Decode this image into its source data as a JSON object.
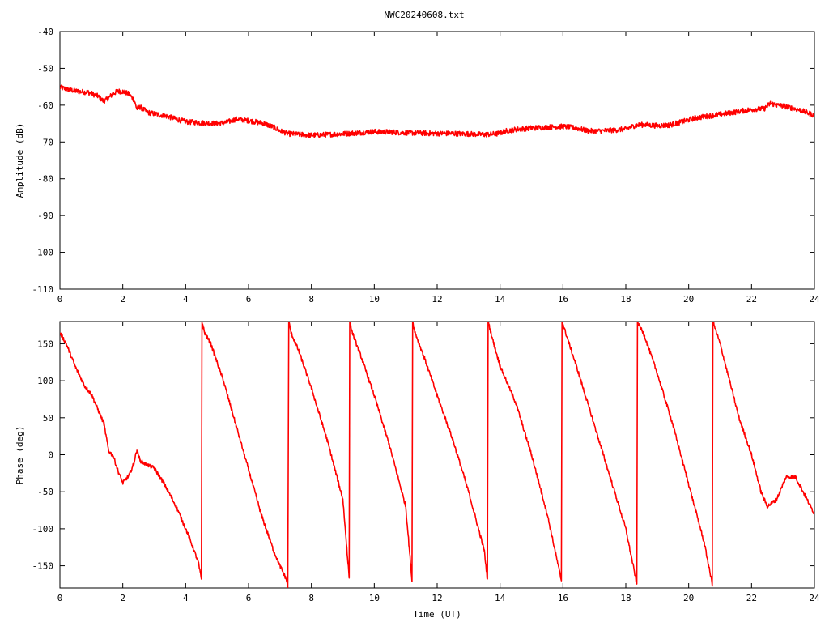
{
  "chart_data": [
    {
      "type": "line",
      "title": "NWC20240608.txt",
      "xlabel": "",
      "ylabel": "Amplitude (dB)",
      "xlim": [
        0,
        24
      ],
      "ylim": [
        -110,
        -40
      ],
      "xticks": [
        "0",
        "2",
        "4",
        "6",
        "8",
        "10",
        "12",
        "14",
        "16",
        "18",
        "20",
        "22",
        "24"
      ],
      "yticks": [
        "-40",
        "-50",
        "-60",
        "-70",
        "-80",
        "-90",
        "-100",
        "-110"
      ],
      "grid": false,
      "series": [
        {
          "color": "#ff0000",
          "noise": 0.7,
          "x": [
            0,
            0.3,
            0.6,
            0.9,
            1.2,
            1.4,
            1.55,
            1.7,
            1.85,
            2.0,
            2.2,
            2.35,
            2.45,
            2.55,
            2.8,
            3.1,
            3.4,
            3.7,
            4.0,
            4.5,
            5.0,
            5.3,
            5.6,
            6.0,
            6.5,
            6.8,
            7.0,
            7.3,
            7.7,
            8.0,
            8.5,
            9.0,
            9.5,
            10.0,
            10.5,
            11.0,
            11.5,
            12.0,
            12.5,
            13.0,
            13.5,
            13.9,
            14.2,
            14.5,
            15.0,
            15.5,
            16.0,
            16.4,
            16.8,
            17.2,
            17.6,
            18.0,
            18.3,
            18.6,
            19.0,
            19.4,
            19.8,
            20.2,
            20.6,
            21.0,
            21.4,
            21.8,
            22.2,
            22.4,
            22.6,
            22.8,
            23.0,
            23.3,
            23.6,
            24.0
          ],
          "y": [
            -55.2,
            -55.8,
            -56.3,
            -56.5,
            -57.5,
            -59.0,
            -58.0,
            -56.8,
            -56.2,
            -56.3,
            -57.0,
            -58.5,
            -61.0,
            -60.5,
            -62.0,
            -62.5,
            -63.0,
            -63.8,
            -64.5,
            -64.8,
            -65.0,
            -64.7,
            -63.8,
            -64.2,
            -65.0,
            -66.0,
            -67.0,
            -67.8,
            -68.0,
            -68.2,
            -68.0,
            -67.8,
            -67.5,
            -67.2,
            -67.3,
            -67.5,
            -67.6,
            -67.7,
            -67.7,
            -67.8,
            -68.0,
            -67.8,
            -67.0,
            -66.6,
            -66.2,
            -66.0,
            -65.8,
            -66.2,
            -67.0,
            -67.0,
            -66.8,
            -66.5,
            -65.5,
            -65.3,
            -65.6,
            -65.4,
            -64.5,
            -63.5,
            -63.0,
            -62.5,
            -62.0,
            -61.4,
            -61.0,
            -61.0,
            -59.5,
            -60.0,
            -60.2,
            -60.8,
            -61.5,
            -62.8
          ]
        }
      ]
    },
    {
      "type": "line",
      "title": "",
      "xlabel": "Time (UT)",
      "ylabel": "Phase (deg)",
      "xlim": [
        0,
        24
      ],
      "ylim": [
        -180,
        180
      ],
      "xticks": [
        "0",
        "2",
        "4",
        "6",
        "8",
        "10",
        "12",
        "14",
        "16",
        "18",
        "20",
        "22",
        "24"
      ],
      "yticks": [
        "150",
        "100",
        "50",
        "0",
        "-50",
        "-100",
        "-150"
      ],
      "grid": false,
      "series": [
        {
          "color": "#ff0000",
          "noise": 2.5,
          "x": [
            0,
            0.2,
            0.5,
            0.8,
            1.0,
            1.2,
            1.4,
            1.55,
            1.7,
            1.85,
            2.0,
            2.2,
            2.35,
            2.45,
            2.55,
            2.7,
            3.0,
            3.3,
            3.7,
            4.1,
            4.4,
            4.5,
            4.52,
            4.6,
            4.8,
            5.2,
            5.6,
            6.0,
            6.4,
            6.8,
            7.0,
            7.2,
            7.25,
            7.28,
            7.35,
            7.6,
            8.0,
            8.5,
            9.0,
            9.2,
            9.22,
            9.3,
            9.6,
            10.0,
            10.5,
            11.0,
            11.2,
            11.22,
            11.3,
            11.6,
            12.0,
            12.5,
            13.0,
            13.5,
            13.6,
            13.62,
            13.8,
            14.0,
            14.5,
            15.0,
            15.5,
            15.95,
            15.97,
            16.2,
            16.5,
            17.0,
            17.5,
            18.0,
            18.35,
            18.37,
            18.6,
            19.0,
            19.5,
            20.0,
            20.5,
            20.75,
            20.77,
            21.0,
            21.3,
            21.6,
            22.0,
            22.3,
            22.5,
            22.8,
            23.1,
            23.4,
            23.7,
            24.0
          ],
          "y": [
            165,
            150,
            118,
            92,
            82,
            62,
            42,
            5,
            -2,
            -22,
            -38,
            -28,
            -12,
            7,
            -8,
            -12,
            -18,
            -38,
            -70,
            -110,
            -145,
            -168,
            180,
            165,
            150,
            100,
            40,
            -20,
            -80,
            -130,
            -150,
            -168,
            -180,
            180,
            165,
            140,
            90,
            20,
            -60,
            -165,
            180,
            165,
            130,
            80,
            10,
            -70,
            -170,
            180,
            165,
            130,
            80,
            20,
            -50,
            -130,
            -170,
            180,
            150,
            120,
            70,
            0,
            -80,
            -170,
            180,
            150,
            110,
            40,
            -30,
            -100,
            -175,
            180,
            160,
            110,
            40,
            -40,
            -120,
            -175,
            180,
            150,
            100,
            50,
            0,
            -50,
            -70,
            -60,
            -30,
            -30,
            -55,
            -80
          ]
        }
      ]
    }
  ]
}
